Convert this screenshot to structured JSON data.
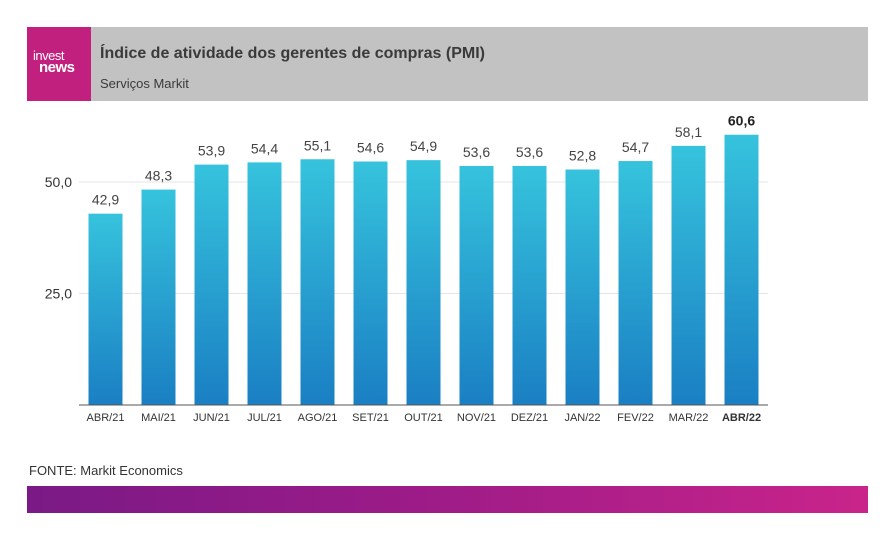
{
  "header": {
    "logo_line1": "invest",
    "logo_line2": "news",
    "title": "Índice de atividade dos gerentes de compras (PMI)",
    "subtitle": "Serviços Markit"
  },
  "watermark": "investnews",
  "source": "FONTE: Markit Economics",
  "colors": {
    "header_bg": "#c2c2c2",
    "logo_bg": "#c2207e",
    "bar_top": "#36c3dd",
    "bar_bottom": "#1a7fc3",
    "footer_start": "#7a1a86",
    "footer_end": "#c9248a"
  },
  "chart_data": {
    "type": "bar",
    "categories": [
      "ABR/21",
      "MAI/21",
      "JUN/21",
      "JUL/21",
      "AGO/21",
      "SET/21",
      "OUT/21",
      "NOV/21",
      "DEZ/21",
      "JAN/22",
      "FEV/22",
      "MAR/22",
      "ABR/22"
    ],
    "values": [
      42.9,
      48.3,
      53.9,
      54.4,
      55.1,
      54.6,
      54.9,
      53.6,
      53.6,
      52.8,
      54.7,
      58.1,
      60.6
    ],
    "value_labels": [
      "42,9",
      "48,3",
      "53,9",
      "54,4",
      "55,1",
      "54,6",
      "54,9",
      "53,6",
      "53,6",
      "52,8",
      "54,7",
      "58,1",
      "60,6"
    ],
    "highlight_index": 12,
    "yticks": [
      25,
      50
    ],
    "ytick_labels": [
      "25,0",
      "50,0"
    ],
    "ylim": [
      0,
      62
    ],
    "grid": true,
    "xlabel": "",
    "ylabel": ""
  }
}
